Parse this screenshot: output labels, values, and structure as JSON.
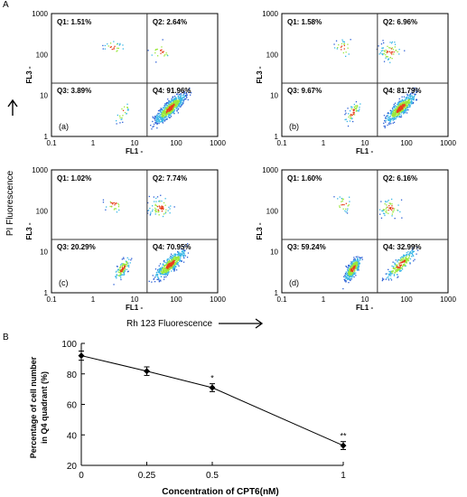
{
  "panel_labels": {
    "a": "A",
    "b": "B"
  },
  "flow": {
    "x_axis_label": "FL1 -",
    "y_axis_label": "FL3 -",
    "x_ticks": [
      "0.1",
      "1",
      "10",
      "100",
      "1000"
    ],
    "y_ticks": [
      "1",
      "10",
      "100",
      "1000"
    ],
    "side_label": "PI Fluorescence",
    "bottom_label": "Rh 123 Fluorescence",
    "gate": {
      "x": 20,
      "y": 20
    },
    "colors": {
      "low": "#2a5ed6",
      "mid": "#38b7e6",
      "high": "#9ae83a",
      "peak": "#e8401c"
    },
    "plots": [
      {
        "tag": "(a)",
        "q1": "Q1: 1.51%",
        "q2": "Q2: 2.64%",
        "q3": "Q3: 3.89%",
        "q4": "Q4: 91.96%"
      },
      {
        "tag": "(b)",
        "q1": "Q1: 1.58%",
        "q2": "Q2: 6.96%",
        "q3": "Q3: 9.67%",
        "q4": "Q4: 81.79%"
      },
      {
        "tag": "(c)",
        "q1": "Q1: 1.02%",
        "q2": "Q2: 7.74%",
        "q3": "Q3: 20.29%",
        "q4": "Q4: 70.95%"
      },
      {
        "tag": "(d)",
        "q1": "Q1: 1.60%",
        "q2": "Q2: 6.16%",
        "q3": "Q3: 59.24%",
        "q4": "Q4: 32.99%"
      }
    ]
  },
  "chart_data": {
    "type": "line",
    "categories": [
      "0",
      "0.25",
      "0.5",
      "1"
    ],
    "values": [
      91.96,
      81.79,
      70.95,
      32.99
    ],
    "errors": [
      3,
      2.8,
      2.6,
      2.6
    ],
    "annotations": [
      "",
      "",
      "*",
      "**"
    ],
    "ylabel_line1": "Percentage of cell number",
    "ylabel_line2": "in Q4 quadrant (%)",
    "xlabel": "Concentration of CPT6(nM)",
    "ylim": [
      20,
      100
    ],
    "yticks": [
      "20",
      "40",
      "60",
      "80",
      "100"
    ],
    "grid": false
  }
}
